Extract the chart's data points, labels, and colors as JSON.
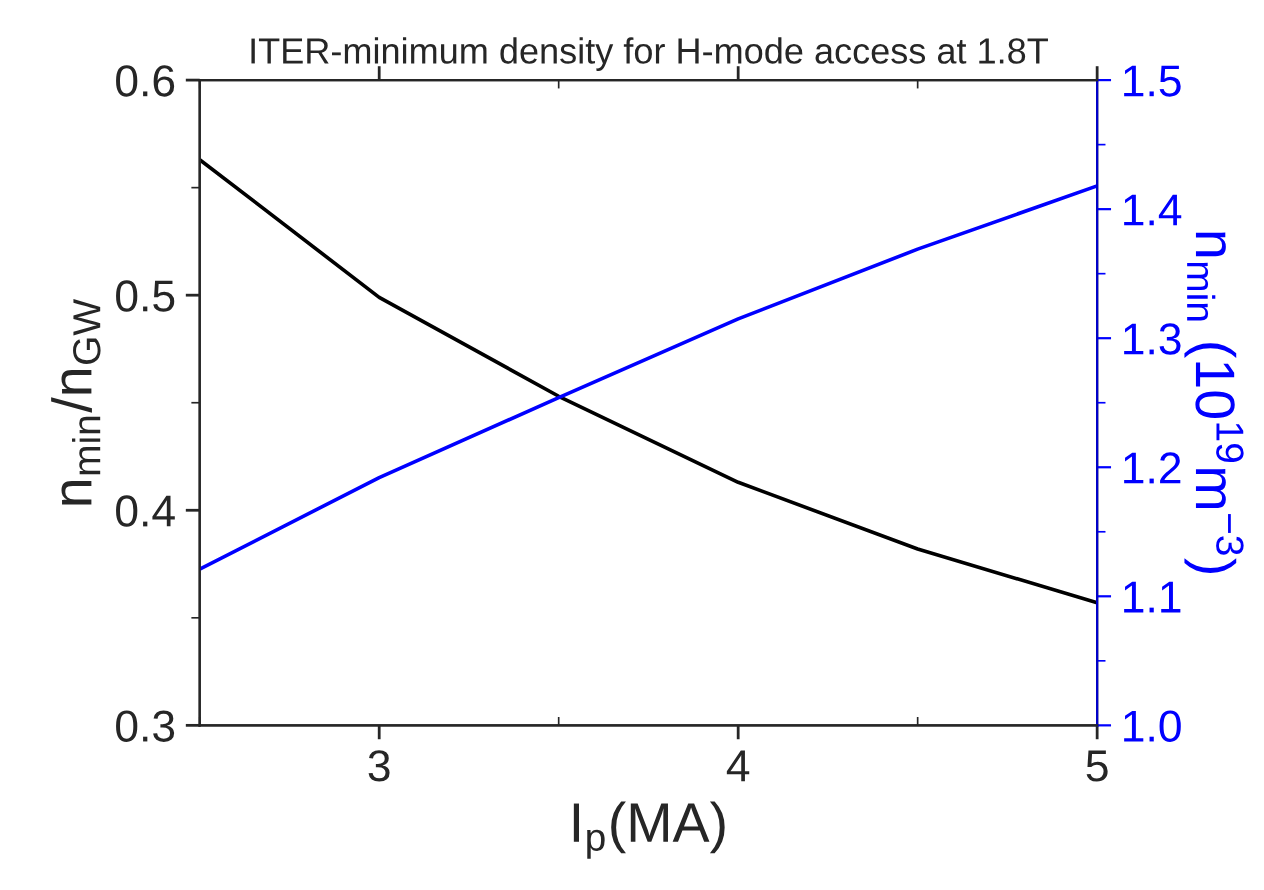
{
  "chart_data": {
    "type": "line",
    "title": "ITER-minimum density for H-mode access at 1.8T",
    "xlabel": "I$_{p}$(MA)",
    "ylabel": "n$_{min}$/n$_{GW}$",
    "y2label": "n$_{min}$ (10$^{19}$m$^{−3}$)",
    "x": [
      2.5,
      3,
      3.5,
      4,
      4.5,
      5
    ],
    "series": [
      {
        "color": "#000000",
        "values": [
          0.563,
          0.499,
          0.453,
          0.413,
          0.382,
          0.357
        ]
      },
      {
        "color": "#0000ff",
        "axis": "y2",
        "values": [
          1.121,
          1.192,
          1.254,
          1.315,
          1.369,
          1.418
        ]
      }
    ],
    "xlim": [
      2.5,
      5
    ],
    "xticks": [
      3,
      4,
      5
    ],
    "ylim": [
      0.3,
      0.6
    ],
    "yticks": [
      0.3,
      0.4,
      0.5,
      0.6
    ],
    "y2lim": [
      1.0,
      1.5
    ],
    "y2ticks": [
      {
        "value": 1.0,
        "label": "1.0"
      },
      1.1,
      1.2,
      1.3,
      1.4,
      1.5
    ],
    "grid": false,
    "legend": false,
    "marker": "none",
    "line_style": "solid"
  }
}
